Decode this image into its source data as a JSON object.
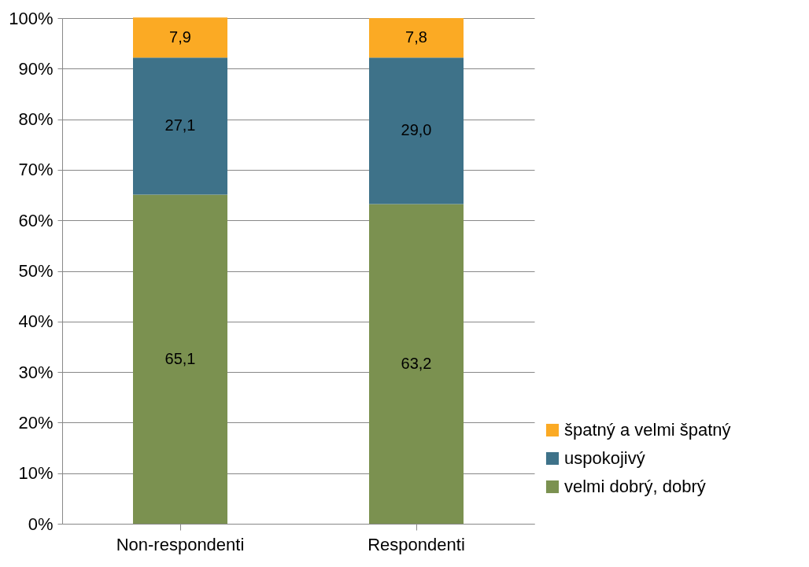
{
  "chart_data": {
    "type": "bar",
    "stacked": true,
    "categories": [
      "Non-respondenti",
      "Respondenti"
    ],
    "series": [
      {
        "name": "velmi dobrý, dobrý",
        "color": "#7b9150",
        "values": [
          65.1,
          63.2
        ],
        "value_labels": [
          "65,1",
          "63,2"
        ]
      },
      {
        "name": "uspokojivý",
        "color": "#3e7289",
        "values": [
          27.1,
          29.0
        ],
        "value_labels": [
          "27,1",
          "29,0"
        ]
      },
      {
        "name": "špatný a velmi špatný",
        "color": "#fbaa24",
        "values": [
          7.9,
          7.8
        ],
        "value_labels": [
          "7,9",
          "7,8"
        ]
      }
    ],
    "ylim": [
      0,
      100
    ],
    "yticks": [
      {
        "value": 0,
        "label": "0%"
      },
      {
        "value": 10,
        "label": "10%"
      },
      {
        "value": 20,
        "label": "20%"
      },
      {
        "value": 30,
        "label": "30%"
      },
      {
        "value": 40,
        "label": "40%"
      },
      {
        "value": 50,
        "label": "50%"
      },
      {
        "value": 60,
        "label": "60%"
      },
      {
        "value": 70,
        "label": "70%"
      },
      {
        "value": 80,
        "label": "80%"
      },
      {
        "value": 90,
        "label": "90%"
      },
      {
        "value": 100,
        "label": "100%"
      }
    ],
    "grid": "y",
    "legend": "bottom right"
  }
}
